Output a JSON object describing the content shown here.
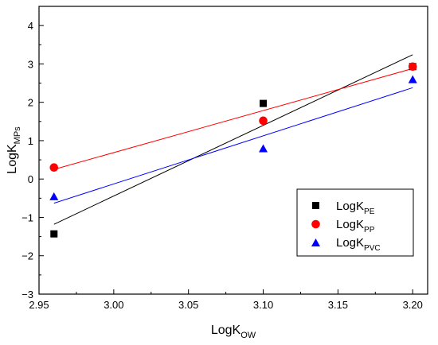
{
  "chart_data": {
    "type": "scatter",
    "xlabel": {
      "main": "LogK",
      "sub": "OW"
    },
    "ylabel": {
      "main": "LogK",
      "sub": "MPs"
    },
    "xlim": [
      2.95,
      3.21
    ],
    "ylim": [
      -3,
      4.5
    ],
    "x_ticks": [
      2.95,
      3.0,
      3.05,
      3.1,
      3.15,
      3.2
    ],
    "x_tick_labels": [
      "2.95",
      "3.00",
      "3.05",
      "3.10",
      "3.15",
      "3.20"
    ],
    "y_ticks": [
      -3,
      -2,
      -1,
      0,
      1,
      2,
      3,
      4
    ],
    "y_tick_labels": [
      "−3",
      "−2",
      "−1",
      "0",
      "1",
      "2",
      "3",
      "4"
    ],
    "grid": false,
    "legend_position": "bottom-right",
    "series": [
      {
        "name": {
          "main": "LogK",
          "sub": "PE"
        },
        "marker": "square",
        "color": "#000000",
        "x": [
          2.96,
          3.1,
          3.2
        ],
        "y": [
          -1.43,
          1.97,
          2.93
        ],
        "fit": {
          "x": [
            2.96,
            3.2
          ],
          "y": [
            -1.18,
            3.24
          ],
          "color": "#000000"
        }
      },
      {
        "name": {
          "main": "LogK",
          "sub": "PP"
        },
        "marker": "circle",
        "color": "#ff0000",
        "x": [
          2.96,
          3.1,
          3.2
        ],
        "y": [
          0.3,
          1.52,
          2.93
        ],
        "fit": {
          "x": [
            2.96,
            3.2
          ],
          "y": [
            0.25,
            2.88
          ],
          "color": "#ff0000"
        }
      },
      {
        "name": {
          "main": "LogK",
          "sub": "PVC"
        },
        "marker": "triangle",
        "color": "#0000ff",
        "x": [
          2.96,
          3.1,
          3.2
        ],
        "y": [
          -0.47,
          0.78,
          2.58
        ],
        "fit": {
          "x": [
            2.96,
            3.2
          ],
          "y": [
            -0.63,
            2.38
          ],
          "color": "#0000ff"
        }
      }
    ]
  }
}
